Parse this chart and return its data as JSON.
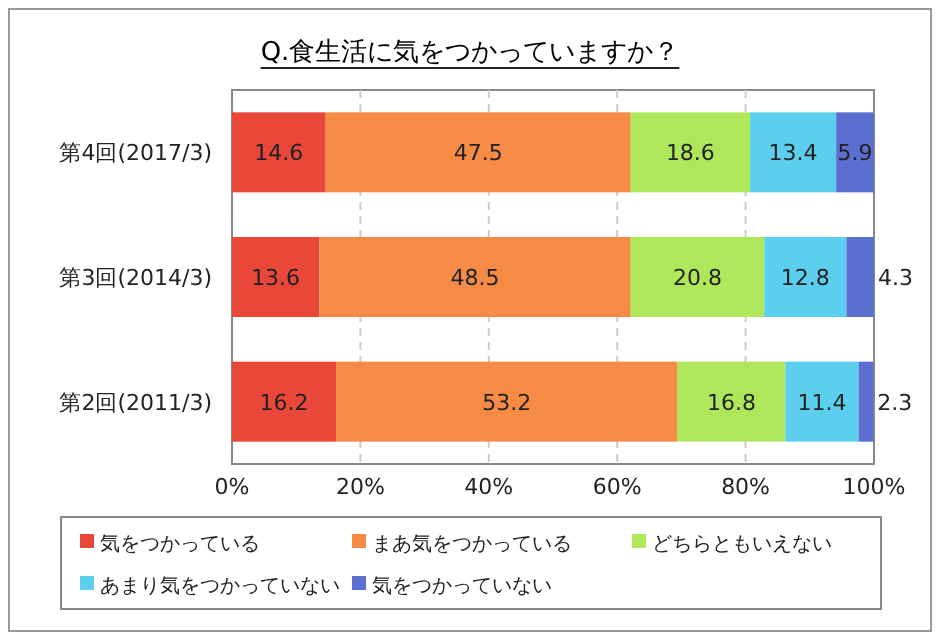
{
  "chart_data": {
    "type": "bar",
    "orientation": "horizontal",
    "stacked": true,
    "title": "Q.食生活に気をつかっていますか？",
    "categories": [
      "第4回(2017/3)",
      "第3回(2014/3)",
      "第2回(2011/3)"
    ],
    "series": [
      {
        "name": "気をつかっている",
        "color": "#e8473a",
        "values": [
          14.6,
          13.6,
          16.2
        ]
      },
      {
        "name": "まあ気をつかっている",
        "color": "#f58b45",
        "values": [
          47.5,
          48.5,
          53.2
        ]
      },
      {
        "name": "どちらともいえない",
        "color": "#aee85a",
        "values": [
          18.6,
          20.8,
          16.8
        ]
      },
      {
        "name": "あまり気をつかっていない",
        "color": "#5ccfee",
        "values": [
          13.4,
          12.8,
          11.4
        ]
      },
      {
        "name": "気をつかっていない",
        "color": "#5b6fd0",
        "values": [
          5.9,
          4.3,
          2.3
        ]
      }
    ],
    "xlim": [
      0,
      100
    ],
    "xticks": [
      {
        "value": 0,
        "label": "0%"
      },
      {
        "value": 20,
        "label": "20%"
      },
      {
        "value": 40,
        "label": "40%"
      },
      {
        "value": 60,
        "label": "60%"
      },
      {
        "value": 80,
        "label": "80%"
      },
      {
        "value": 100,
        "label": "100%"
      }
    ],
    "grid": "x",
    "data_labels": true,
    "legend": "bottom"
  }
}
